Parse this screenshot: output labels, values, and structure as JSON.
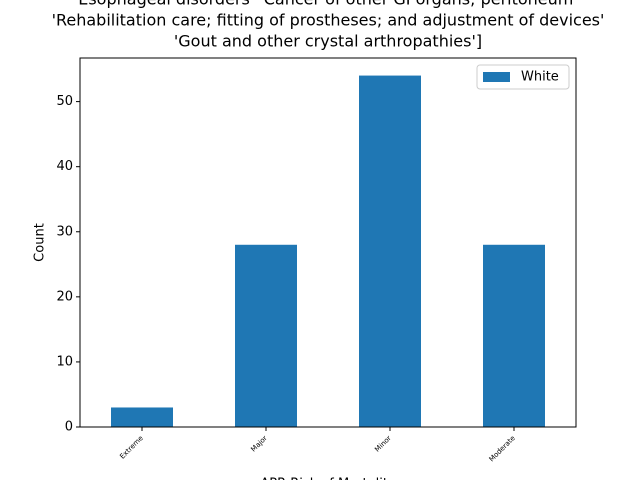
{
  "chart_data": {
    "type": "bar",
    "title": [
      "Esophageal disorders' 'Cancer of other GI organs; peritoneum'",
      "'Rehabilitation care; fitting of prostheses; and adjustment of devices'",
      "'Gout and other crystal arthropathies']"
    ],
    "x_label": "APR Risk of Mortality",
    "y_label": "Count",
    "categories": [
      "Extreme",
      "Major",
      "Minor",
      "Moderate"
    ],
    "series": [
      {
        "name": "White",
        "color": "#1f77b4",
        "values": [
          3,
          28,
          54,
          28
        ]
      }
    ],
    "ylim": [
      0,
      56.7
    ],
    "yticks": [
      0,
      10,
      20,
      30,
      40,
      50
    ],
    "legend": "upper right",
    "grid": false
  }
}
